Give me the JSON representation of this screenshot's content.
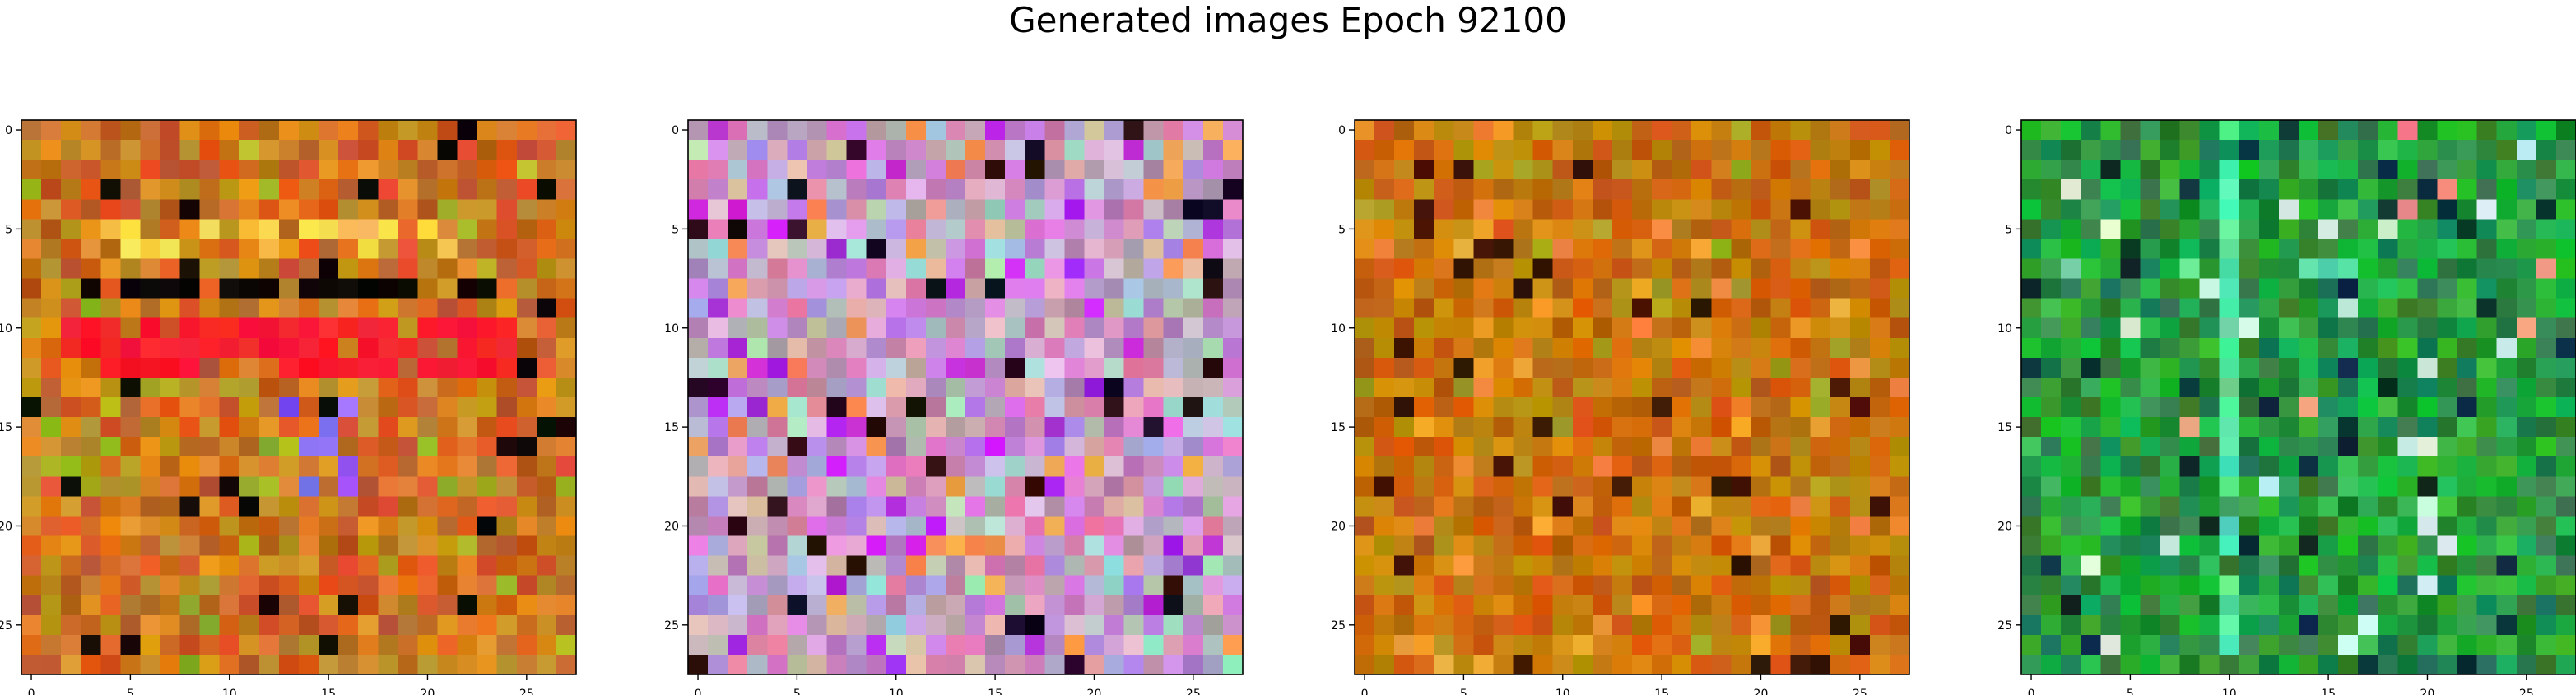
{
  "figure": {
    "title": "Generated images Epoch 92100"
  },
  "chart_data": [
    {
      "type": "heatmap",
      "palette": "warm",
      "xticks": [
        0,
        5,
        10,
        15,
        20,
        25
      ],
      "yticks": [
        0,
        5,
        10,
        15,
        20,
        25
      ],
      "xlim": [
        -0.5,
        27.5
      ],
      "ylim": [
        27.5,
        -0.5
      ],
      "grid": false
    },
    {
      "type": "heatmap",
      "palette": "pink",
      "xticks": [
        0,
        5,
        10,
        15,
        20,
        25
      ],
      "yticks": [
        0,
        5,
        10,
        15,
        20,
        25
      ],
      "xlim": [
        -0.5,
        27.5
      ],
      "ylim": [
        27.5,
        -0.5
      ],
      "grid": false
    },
    {
      "type": "heatmap",
      "palette": "orange",
      "xticks": [
        0,
        5,
        10,
        15,
        20,
        25
      ],
      "yticks": [
        0,
        5,
        10,
        15,
        20,
        25
      ],
      "xlim": [
        -0.5,
        27.5
      ],
      "ylim": [
        27.5,
        -0.5
      ],
      "grid": false
    },
    {
      "type": "heatmap",
      "palette": "green",
      "xticks": [
        0,
        5,
        10,
        15,
        20,
        25
      ],
      "yticks": [
        0,
        5,
        10,
        15,
        20,
        25
      ],
      "xlim": [
        -0.5,
        27.5
      ],
      "ylim": [
        27.5,
        -0.5
      ],
      "grid": false
    }
  ]
}
